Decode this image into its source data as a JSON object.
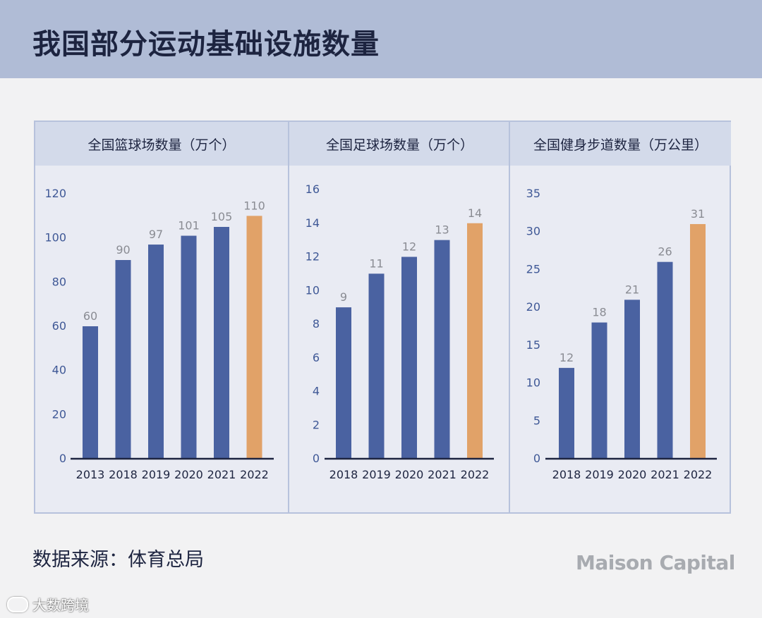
{
  "title": "我国部分运动基础设施数量",
  "source": "数据来源：体育总局",
  "brand": "Maison Capital",
  "watermark": "大数跨境",
  "colors": {
    "bar": "#4a62a1",
    "highlight": "#e1a268",
    "axis": "#1d2440",
    "header_bg": "#b0bcd6"
  },
  "chart_data": [
    {
      "type": "bar",
      "title": "全国篮球场数量（万个）",
      "categories": [
        "2013",
        "2018",
        "2019",
        "2020",
        "2021",
        "2022"
      ],
      "values": [
        60,
        90,
        97,
        101,
        105,
        110
      ],
      "yticks": [
        0,
        20,
        40,
        60,
        80,
        100,
        120
      ],
      "ylim": [
        0,
        120
      ],
      "highlight_index": 5
    },
    {
      "type": "bar",
      "title": "全国足球场数量（万个）",
      "categories": [
        "2018",
        "2019",
        "2020",
        "2021",
        "2022"
      ],
      "values": [
        9,
        11,
        12,
        13,
        14
      ],
      "yticks": [
        0,
        2,
        4,
        6,
        8,
        10,
        12,
        14,
        16
      ],
      "ylim": [
        0,
        16
      ],
      "highlight_index": 4
    },
    {
      "type": "bar",
      "title": "全国健身步道数量（万公里）",
      "categories": [
        "2018",
        "2019",
        "2020",
        "2021",
        "2022"
      ],
      "values": [
        12,
        18,
        21,
        26,
        31
      ],
      "yticks": [
        0,
        5,
        10,
        15,
        20,
        25,
        30,
        35
      ],
      "ylim": [
        0,
        35
      ],
      "highlight_index": 4
    }
  ]
}
